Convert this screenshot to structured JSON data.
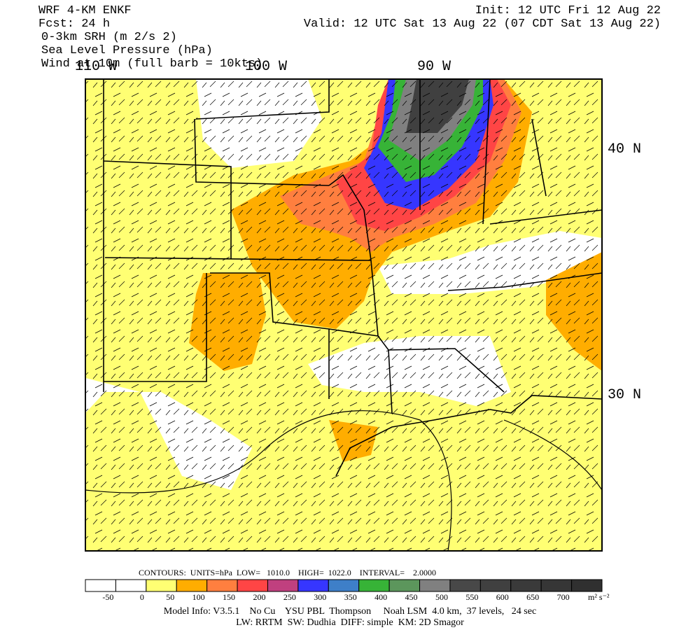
{
  "header": {
    "left": [
      "WRF 4-KM ENKF",
      "Fcst:   24 h",
      "0-3km SRH (m 2/s 2)",
      "Sea Level Pressure (hPa)",
      "Wind at 10m (full barb = 10kts)"
    ],
    "init": "Init: 12 UTC Fri 12 Aug 22",
    "valid": "Valid: 12 UTC Sat 13 Aug 22 (07 CDT Sat 13 Aug 22)"
  },
  "map": {
    "longitude_labels": [
      "110 W",
      "100 W",
      "90 W"
    ],
    "latitude_labels": [
      "40 N",
      "30 N"
    ]
  },
  "contours": "CONTOURS:  UNITS=hPa  LOW=   1010.0    HIGH=  1022.0    INTERVAL=    2.0000",
  "colorbar": {
    "colors": [
      "#ffffff",
      "#ffffff",
      "#ffff73",
      "#ffad00",
      "#ff7f3f",
      "#ff4545",
      "#c0407f",
      "#3636ff",
      "#3e7fc8",
      "#37b337",
      "#5c965c",
      "#808080",
      "#484848",
      "#404040",
      "#3a3a3a",
      "#363636",
      "#303030"
    ],
    "labels": [
      "-50",
      "0",
      "50",
      "100",
      "150",
      "200",
      "250",
      "300",
      "350",
      "400",
      "450",
      "500",
      "550",
      "600",
      "650",
      "700"
    ],
    "unit": "m² s⁻²"
  },
  "footer": [
    "Model Info: V3.5.1    No Cu    YSU PBL  Thompson     Noah LSM  4.0 km,  37 levels,   24 sec",
    "LW: RRTM  SW: Dudhia  DIFF: simple  KM: 2D Smagor"
  ]
}
